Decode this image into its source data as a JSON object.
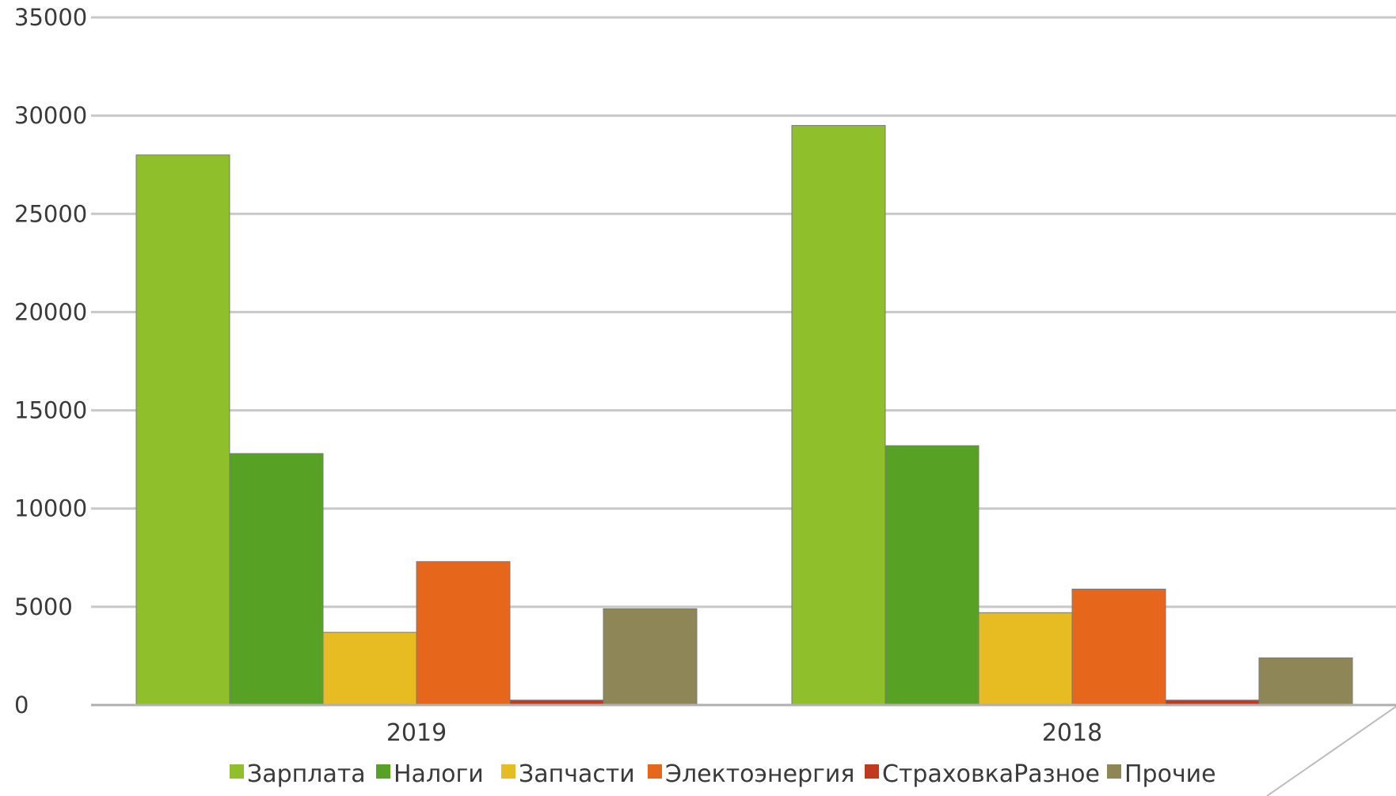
{
  "chart_data": {
    "type": "bar",
    "categories": [
      "2019",
      "2018"
    ],
    "series": [
      {
        "name": "Зарплата",
        "color": "#8fbf2a",
        "values": [
          28000,
          29500
        ]
      },
      {
        "name": "Налоги",
        "color": "#57a224",
        "values": [
          12800,
          13200
        ]
      },
      {
        "name": "Запчасти",
        "color": "#e6bc22",
        "values": [
          3700,
          4700
        ]
      },
      {
        "name": "Электоэнергия",
        "color": "#e6661b",
        "values": [
          7300,
          5900
        ]
      },
      {
        "name": "СтраховкаРазное",
        "color": "#c23a1e",
        "values": [
          250,
          250
        ]
      },
      {
        "name": "Прочие",
        "color": "#8f8658",
        "values": [
          4900,
          2400
        ]
      }
    ],
    "yticks": [
      "0",
      "5000",
      "10000",
      "15000",
      "20000",
      "25000",
      "30000",
      "35000"
    ],
    "ylim": [
      0,
      35000
    ],
    "grid": true,
    "legend_position": "bottom",
    "title": "",
    "xlabel": "",
    "ylabel": ""
  }
}
